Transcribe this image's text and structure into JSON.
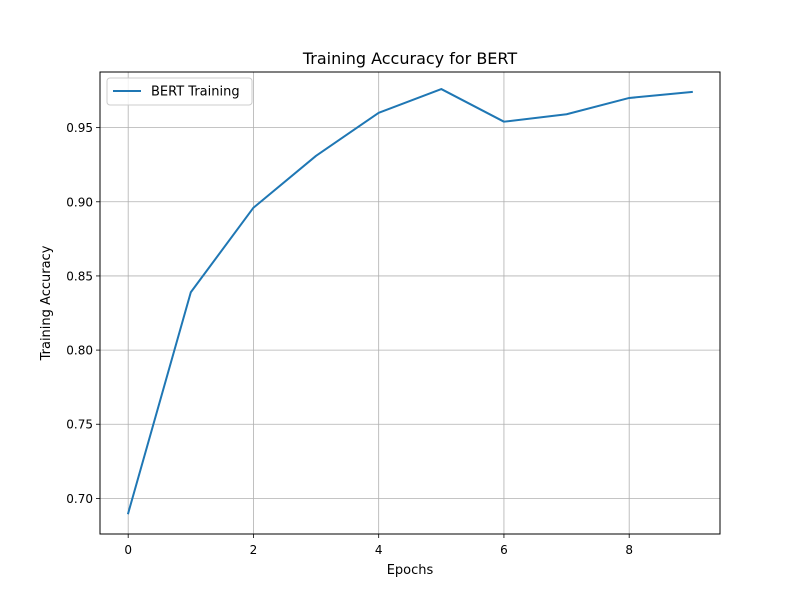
{
  "chart_data": {
    "type": "line",
    "title": "Training Accuracy for BERT",
    "xlabel": "Epochs",
    "ylabel": "Training Accuracy",
    "xlim": [
      -0.45,
      9.45
    ],
    "ylim": [
      0.676,
      0.9875
    ],
    "x_ticks": [
      0,
      2,
      4,
      6,
      8
    ],
    "y_ticks": [
      0.7,
      0.75,
      0.8,
      0.85,
      0.9,
      0.95
    ],
    "y_tick_labels": [
      "0.70",
      "0.75",
      "0.80",
      "0.85",
      "0.90",
      "0.95"
    ],
    "grid": true,
    "legend_position": "top-left",
    "series": [
      {
        "name": "BERT Training",
        "color": "#1f77b4",
        "x": [
          0,
          1,
          2,
          3,
          4,
          5,
          6,
          7,
          8,
          9
        ],
        "values": [
          0.69,
          0.839,
          0.896,
          0.931,
          0.96,
          0.976,
          0.954,
          0.959,
          0.97,
          0.974
        ]
      }
    ]
  }
}
